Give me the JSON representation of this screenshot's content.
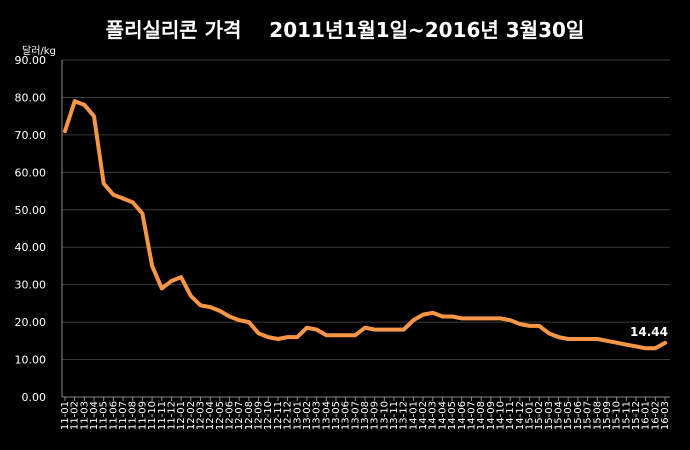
{
  "chart_data": {
    "type": "line",
    "title": "폴리실리콘 가격    2011년1월1일~2016년 3월30일",
    "ylabel": "달러/kg",
    "ylim": [
      0,
      90
    ],
    "yticks": [
      "0.00",
      "10.00",
      "20.00",
      "30.00",
      "40.00",
      "50.00",
      "60.00",
      "70.00",
      "80.00",
      "90.00"
    ],
    "grid": true,
    "line_color": "#f79646",
    "end_label": "14.44",
    "x": [
      "11-01",
      "11-02",
      "11-03",
      "11-04",
      "11-05",
      "11-06",
      "11-07",
      "11-08",
      "11-09",
      "11-10",
      "11-11",
      "11-12",
      "12-01",
      "12-02",
      "12-03",
      "12-04",
      "12-05",
      "12-06",
      "12-07",
      "12-08",
      "12-09",
      "12-10",
      "12-11",
      "12-12",
      "13-01",
      "13-02",
      "13-03",
      "13-04",
      "13-05",
      "13-06",
      "13-07",
      "13-08",
      "13-09",
      "13-10",
      "13-11",
      "13-12",
      "14-01",
      "14-02",
      "14-03",
      "14-04",
      "14-05",
      "14-06",
      "14-07",
      "14-08",
      "14-09",
      "14-10",
      "14-11",
      "14-12",
      "15-01",
      "15-02",
      "15-03",
      "15-04",
      "15-05",
      "15-06",
      "15-07",
      "15-08",
      "15-09",
      "15-10",
      "15-11",
      "15-12",
      "16-01",
      "16-02",
      "16-03"
    ],
    "series": [
      {
        "values": [
          71,
          79,
          78,
          75,
          57,
          54,
          53,
          52,
          49,
          35,
          29,
          31,
          32,
          27,
          24.5,
          24,
          23,
          21.5,
          20.5,
          20,
          17,
          16,
          15.5,
          16,
          16,
          18.5,
          18,
          16.5,
          16.5,
          16.5,
          16.5,
          18.5,
          18,
          18,
          18,
          18,
          20.5,
          22,
          22.5,
          21.5,
          21.5,
          21,
          21,
          21,
          21,
          21,
          20.5,
          19.5,
          19,
          19,
          17,
          16,
          15.5,
          15.5,
          15.5,
          15.5,
          15,
          14.5,
          14,
          13.5,
          13,
          13,
          14.44
        ]
      }
    ]
  }
}
